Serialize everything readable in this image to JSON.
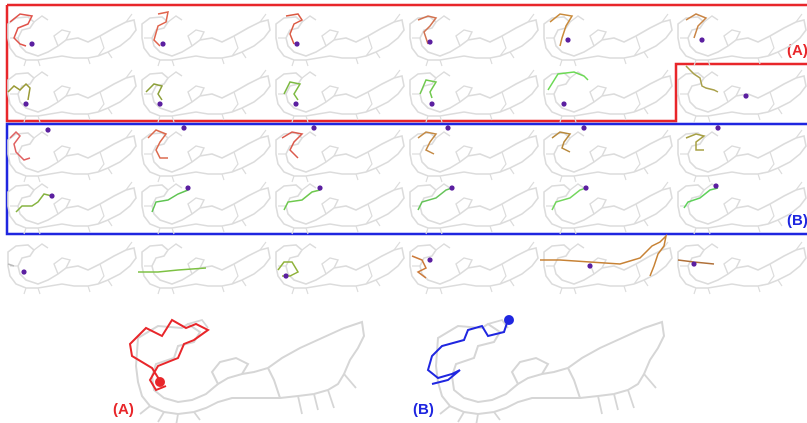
{
  "colors": {
    "group_a": "#e8262a",
    "group_b": "#1f26e0",
    "map_outline": "#d9d9d9",
    "endpoint_marker": "#5b1fa0"
  },
  "groups": [
    {
      "id": "A",
      "label": "(A)",
      "color": "#e8262a"
    },
    {
      "id": "B",
      "label": "(B)",
      "color": "#1f26e0"
    }
  ],
  "thumbnail_rows": [
    {
      "group": "A",
      "colors": [
        "#e0534a",
        "#e0644d",
        "#db5a43",
        "#d27351",
        "#c98a3a",
        "#c98545"
      ]
    },
    {
      "group": "A",
      "colors": [
        "#9a9a35",
        "#8da03a",
        "#7dba43",
        "#70c94e",
        "#6cd955",
        "#a9a04a"
      ]
    },
    {
      "group": "B",
      "colors": [
        "#e06060",
        "#dc6a4e",
        "#db5a4d",
        "#c48a45",
        "#b8893c",
        "#a7a044"
      ]
    },
    {
      "group": "B",
      "colors": [
        "#86b340",
        "#5fc452",
        "#6ec94e",
        "#66c35a",
        "#73d65d",
        "#5ed15a"
      ]
    },
    {
      "group": "none",
      "colors": [
        "#bbbbbb",
        "#7dc143",
        "#8fb23a",
        "#cc7a3a",
        "#c78235",
        "#b07038"
      ]
    }
  ],
  "detail_panels": [
    {
      "group": "A",
      "label": "(A)",
      "color": "#e8262a"
    },
    {
      "group": "B",
      "label": "(B)",
      "color": "#1f26e0"
    }
  ]
}
